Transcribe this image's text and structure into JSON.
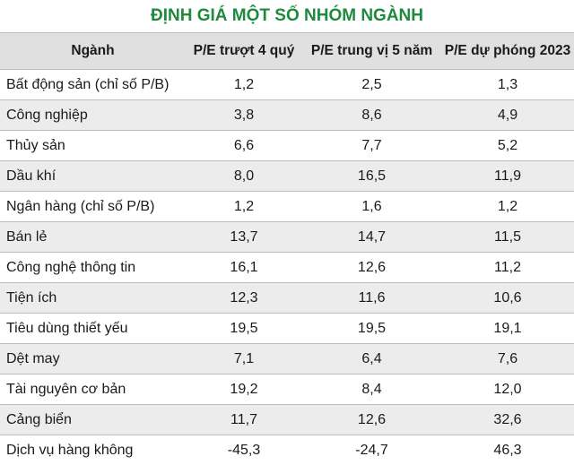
{
  "title": "ĐỊNH GIÁ MỘT SỐ NHÓM NGÀNH",
  "headers": [
    "Ngành",
    "P/E trượt 4 quý",
    "P/E trung vị 5 năm",
    "P/E dự phóng 2023"
  ],
  "rows": [
    [
      "Bất động sản (chỉ số P/B)",
      "1,2",
      "2,5",
      "1,3"
    ],
    [
      "Công nghiệp",
      "3,8",
      "8,6",
      "4,9"
    ],
    [
      "Thủy sản",
      "6,6",
      "7,7",
      "5,2"
    ],
    [
      "Dầu khí",
      "8,0",
      "16,5",
      "11,9"
    ],
    [
      "Ngân hàng (chỉ số P/B)",
      "1,2",
      "1,6",
      "1,2"
    ],
    [
      "Bán lẻ",
      "13,7",
      "14,7",
      "11,5"
    ],
    [
      "Công nghệ thông tin",
      "16,1",
      "12,6",
      "11,2"
    ],
    [
      "Tiện ích",
      "12,3",
      "11,6",
      "10,6"
    ],
    [
      "Tiêu dùng thiết yếu",
      "19,5",
      "19,5",
      "19,1"
    ],
    [
      "Dệt may",
      "7,1",
      "6,4",
      "7,6"
    ],
    [
      "Tài nguyên cơ bản",
      "19,2",
      "8,4",
      "12,0"
    ],
    [
      "Cảng biển",
      "11,7",
      "12,6",
      "32,6"
    ],
    [
      "Dịch vụ hàng không",
      "-45,3",
      "-24,7",
      "46,3"
    ]
  ],
  "colors": {
    "title": "#1e8a3e",
    "header_bg": "#e0e0e0",
    "stripe_bg": "#ececec"
  }
}
